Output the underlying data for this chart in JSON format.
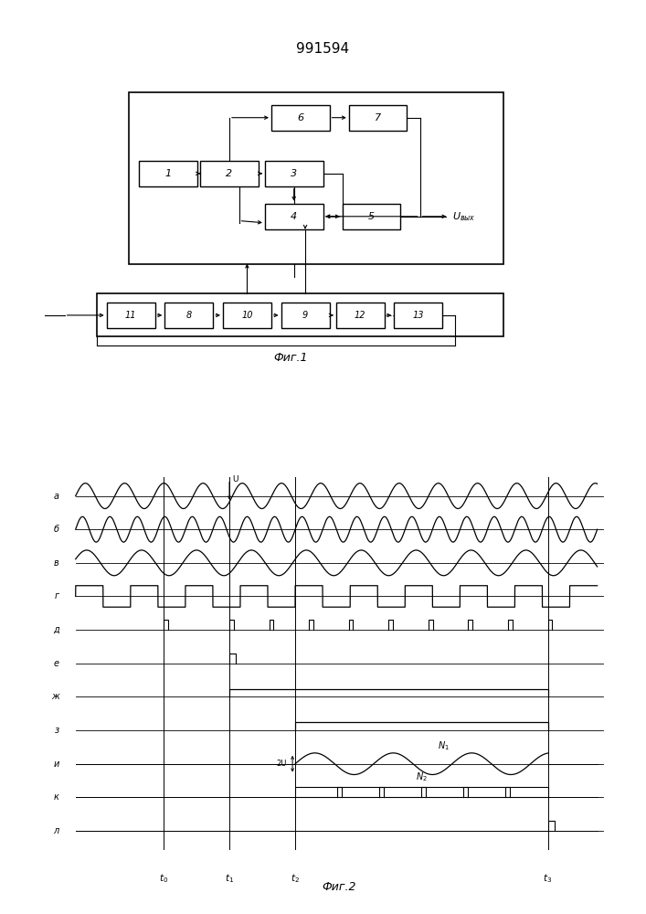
{
  "title": "991594",
  "fig1_label": "Фиг.1",
  "fig2_label": "Фиг.2",
  "background_color": "#ffffff",
  "line_color": "#000000",
  "waveform_labels": [
    "а",
    "б",
    "в",
    "г",
    "д",
    "е",
    "ж",
    "з",
    "и",
    "к",
    "л"
  ],
  "time_labels": [
    "t₀",
    "t₁",
    "t₂",
    "t₃"
  ],
  "t0": 0.18,
  "t1": 0.3,
  "t2": 0.42,
  "t3": 0.88
}
